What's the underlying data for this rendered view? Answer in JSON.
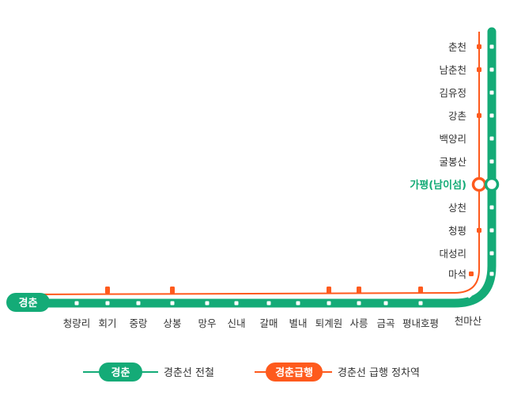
{
  "colors": {
    "line_green": "#14ab77",
    "line_orange": "#fe5a1d",
    "station_dot": "#ffffff",
    "text": "#333333",
    "transfer_text": "#14ab77"
  },
  "line_badge": "경춘",
  "transfer_station": "가평(남이섬)",
  "vertical_stations": [
    {
      "name": "춘천",
      "express": true
    },
    {
      "name": "남춘천",
      "express": true
    },
    {
      "name": "김유정",
      "express": false
    },
    {
      "name": "강촌",
      "express": true
    },
    {
      "name": "백양리",
      "express": false
    },
    {
      "name": "굴봉산",
      "express": false
    },
    {
      "name": "상천",
      "express": false
    },
    {
      "name": "청평",
      "express": true
    },
    {
      "name": "대성리",
      "express": false
    },
    {
      "name": "마석",
      "express": true
    }
  ],
  "curve_station": "천마산",
  "horizontal_stations": [
    {
      "name": "청량리",
      "express": false
    },
    {
      "name": "회기",
      "express": true
    },
    {
      "name": "중랑",
      "express": false
    },
    {
      "name": "상봉",
      "express": true
    },
    {
      "name": "망우",
      "express": false
    },
    {
      "name": "신내",
      "express": false
    },
    {
      "name": "갈매",
      "express": false
    },
    {
      "name": "별내",
      "express": false
    },
    {
      "name": "퇴계원",
      "express": true
    },
    {
      "name": "사릉",
      "express": true
    },
    {
      "name": "금곡",
      "express": false
    },
    {
      "name": "평내호평",
      "express": true
    }
  ],
  "legend": {
    "all": {
      "badge": "경춘",
      "label": "경춘선 전철"
    },
    "express": {
      "badge": "경춘급행",
      "label": "경춘선 급행 정차역"
    }
  }
}
